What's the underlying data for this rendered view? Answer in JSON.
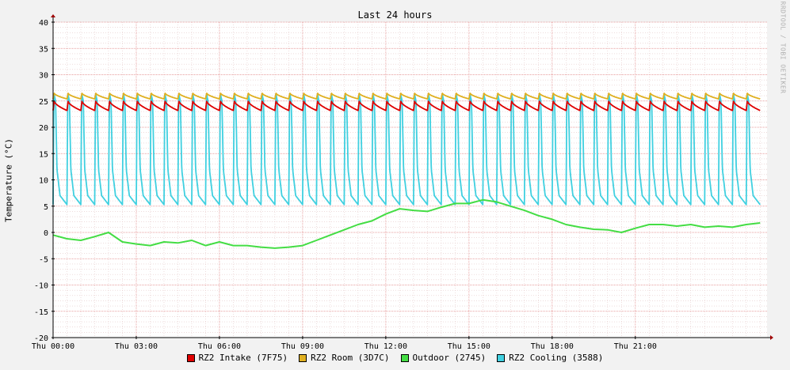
{
  "chart_data": {
    "type": "line",
    "title": "Last 24 hours",
    "ylabel": "Temperature (°C)",
    "watermark": "RRDTOOL / TOBI OETIKER",
    "ylim": [
      -20,
      40
    ],
    "yticks": [
      40,
      35,
      30,
      25,
      20,
      15,
      10,
      5,
      0,
      -5,
      -10,
      -15,
      -20
    ],
    "xlim_hours": [
      0,
      25.75
    ],
    "x_ticks": [
      {
        "hour": 0,
        "label": "Thu 00:00"
      },
      {
        "hour": 3,
        "label": "Thu 03:00"
      },
      {
        "hour": 6,
        "label": "Thu 06:00"
      },
      {
        "hour": 9,
        "label": "Thu 09:00"
      },
      {
        "hour": 12,
        "label": "Thu 12:00"
      },
      {
        "hour": 15,
        "label": "Thu 15:00"
      },
      {
        "hour": 18,
        "label": "Thu 18:00"
      },
      {
        "hour": 21,
        "label": "Thu 21:00"
      }
    ],
    "series": [
      {
        "name": "RZ2 Intake (7F75)",
        "color": "#e00000",
        "pattern": "sawtooth",
        "cycle_hours": 0.5,
        "high": 25,
        "low": 23.2
      },
      {
        "name": "RZ2 Room (3D7C)",
        "color": "#e0b020",
        "pattern": "sawtooth",
        "cycle_hours": 0.5,
        "high": 26.5,
        "low": 25.4
      },
      {
        "name": "Outdoor (2745)",
        "color": "#44dd44",
        "pattern": "smooth",
        "hours": [
          0,
          0.5,
          1,
          1.5,
          2,
          2.5,
          3,
          3.5,
          4,
          4.5,
          5,
          5.5,
          6,
          6.5,
          7,
          7.5,
          8,
          8.5,
          9,
          9.5,
          10,
          10.5,
          11,
          11.5,
          12,
          12.5,
          13,
          13.5,
          14,
          14.5,
          15,
          15.5,
          16,
          16.5,
          17,
          17.5,
          18,
          18.5,
          19,
          19.5,
          20,
          20.5,
          21,
          21.5,
          22,
          22.5,
          23,
          23.5,
          24,
          24.5,
          25,
          25.5
        ],
        "values": [
          -0.5,
          -1.2,
          -1.5,
          -0.8,
          0,
          -1.8,
          -2.2,
          -2.5,
          -1.8,
          -2.0,
          -1.5,
          -2.5,
          -1.8,
          -2.5,
          -2.5,
          -2.8,
          -3.0,
          -2.8,
          -2.5,
          -1.5,
          -0.5,
          0.5,
          1.5,
          2.2,
          3.5,
          4.5,
          4.2,
          4.0,
          4.8,
          5.5,
          5.5,
          6.2,
          5.8,
          5.0,
          4.2,
          3.2,
          2.5,
          1.5,
          1.0,
          0.6,
          0.5,
          0.0,
          0.8,
          1.5,
          1.5,
          1.2,
          1.5,
          1.0,
          1.2,
          1.0,
          1.5,
          1.8
        ]
      },
      {
        "name": "RZ2 Cooling (3588)",
        "color": "#40d0e0",
        "pattern": "pulse",
        "cycle_hours": 0.5,
        "peak": 26.5,
        "base": 5.3
      }
    ]
  }
}
